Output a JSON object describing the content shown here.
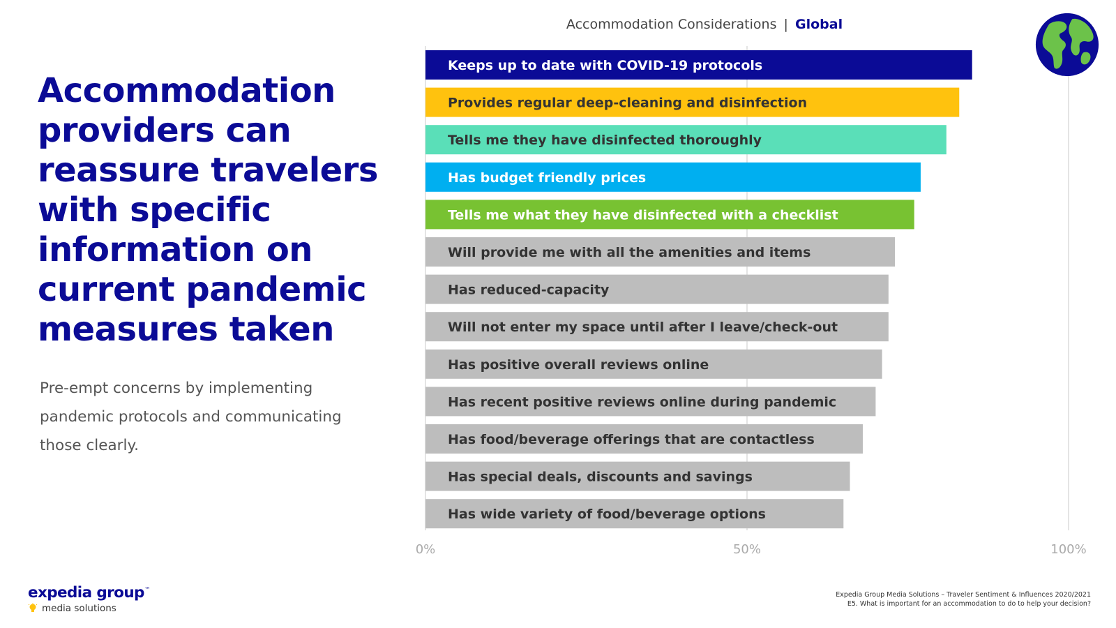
{
  "headline": "Accommodation providers can reassure travelers with specific information on current pandemic measures taken",
  "subtext": "Pre-empt concerns by implementing pandemic protocols and communicating those clearly.",
  "brand": {
    "name": "expedia group",
    "trademark": "™",
    "sub": "media solutions"
  },
  "source": {
    "line1": "Expedia Group Media Solutions – Traveler Sentiment & Influences 2020/2021",
    "line2": "E5. What is important for an accommodation to do to help your decision?"
  },
  "colors": {
    "navy": "#0b0b96",
    "gold": "#ffc20e",
    "mint": "#5adfb8",
    "sky": "#00aff0",
    "green": "#78c232",
    "gray": "#bdbdbd"
  },
  "chart_data": {
    "type": "bar",
    "orientation": "horizontal",
    "title": "Accommodation Considerations",
    "title_separator": "|",
    "title_region": "Global",
    "xlim": [
      0,
      100
    ],
    "x_ticks": [
      0,
      50,
      100
    ],
    "x_tick_labels": [
      "0%",
      "50%",
      "100%"
    ],
    "grid": true,
    "categories": [
      "Keeps up to date with COVID-19 protocols",
      "Provides regular deep-cleaning and disinfection",
      "Tells me they have disinfected thoroughly",
      "Has budget friendly prices",
      "Tells me what they have disinfected with a checklist",
      "Will provide me with all the amenities and items",
      "Has reduced-capacity",
      "Will not enter my space until after I leave/check-out",
      "Has positive overall reviews online",
      "Has recent positive reviews online during pandemic",
      "Has food/beverage offerings that are contactless",
      "Has special deals, discounts and savings",
      "Has wide variety of food/beverage options"
    ],
    "values": [
      85,
      83,
      81,
      77,
      76,
      73,
      72,
      72,
      71,
      70,
      68,
      66,
      65
    ],
    "bar_colors": [
      "#0b0b96",
      "#ffc20e",
      "#5adfb8",
      "#00aff0",
      "#78c232",
      "#bdbdbd",
      "#bdbdbd",
      "#bdbdbd",
      "#bdbdbd",
      "#bdbdbd",
      "#bdbdbd",
      "#bdbdbd",
      "#bdbdbd"
    ],
    "label_colors": [
      "#ffffff",
      "#333333",
      "#333333",
      "#ffffff",
      "#ffffff",
      "#333333",
      "#333333",
      "#333333",
      "#333333",
      "#333333",
      "#333333",
      "#333333",
      "#333333"
    ]
  }
}
